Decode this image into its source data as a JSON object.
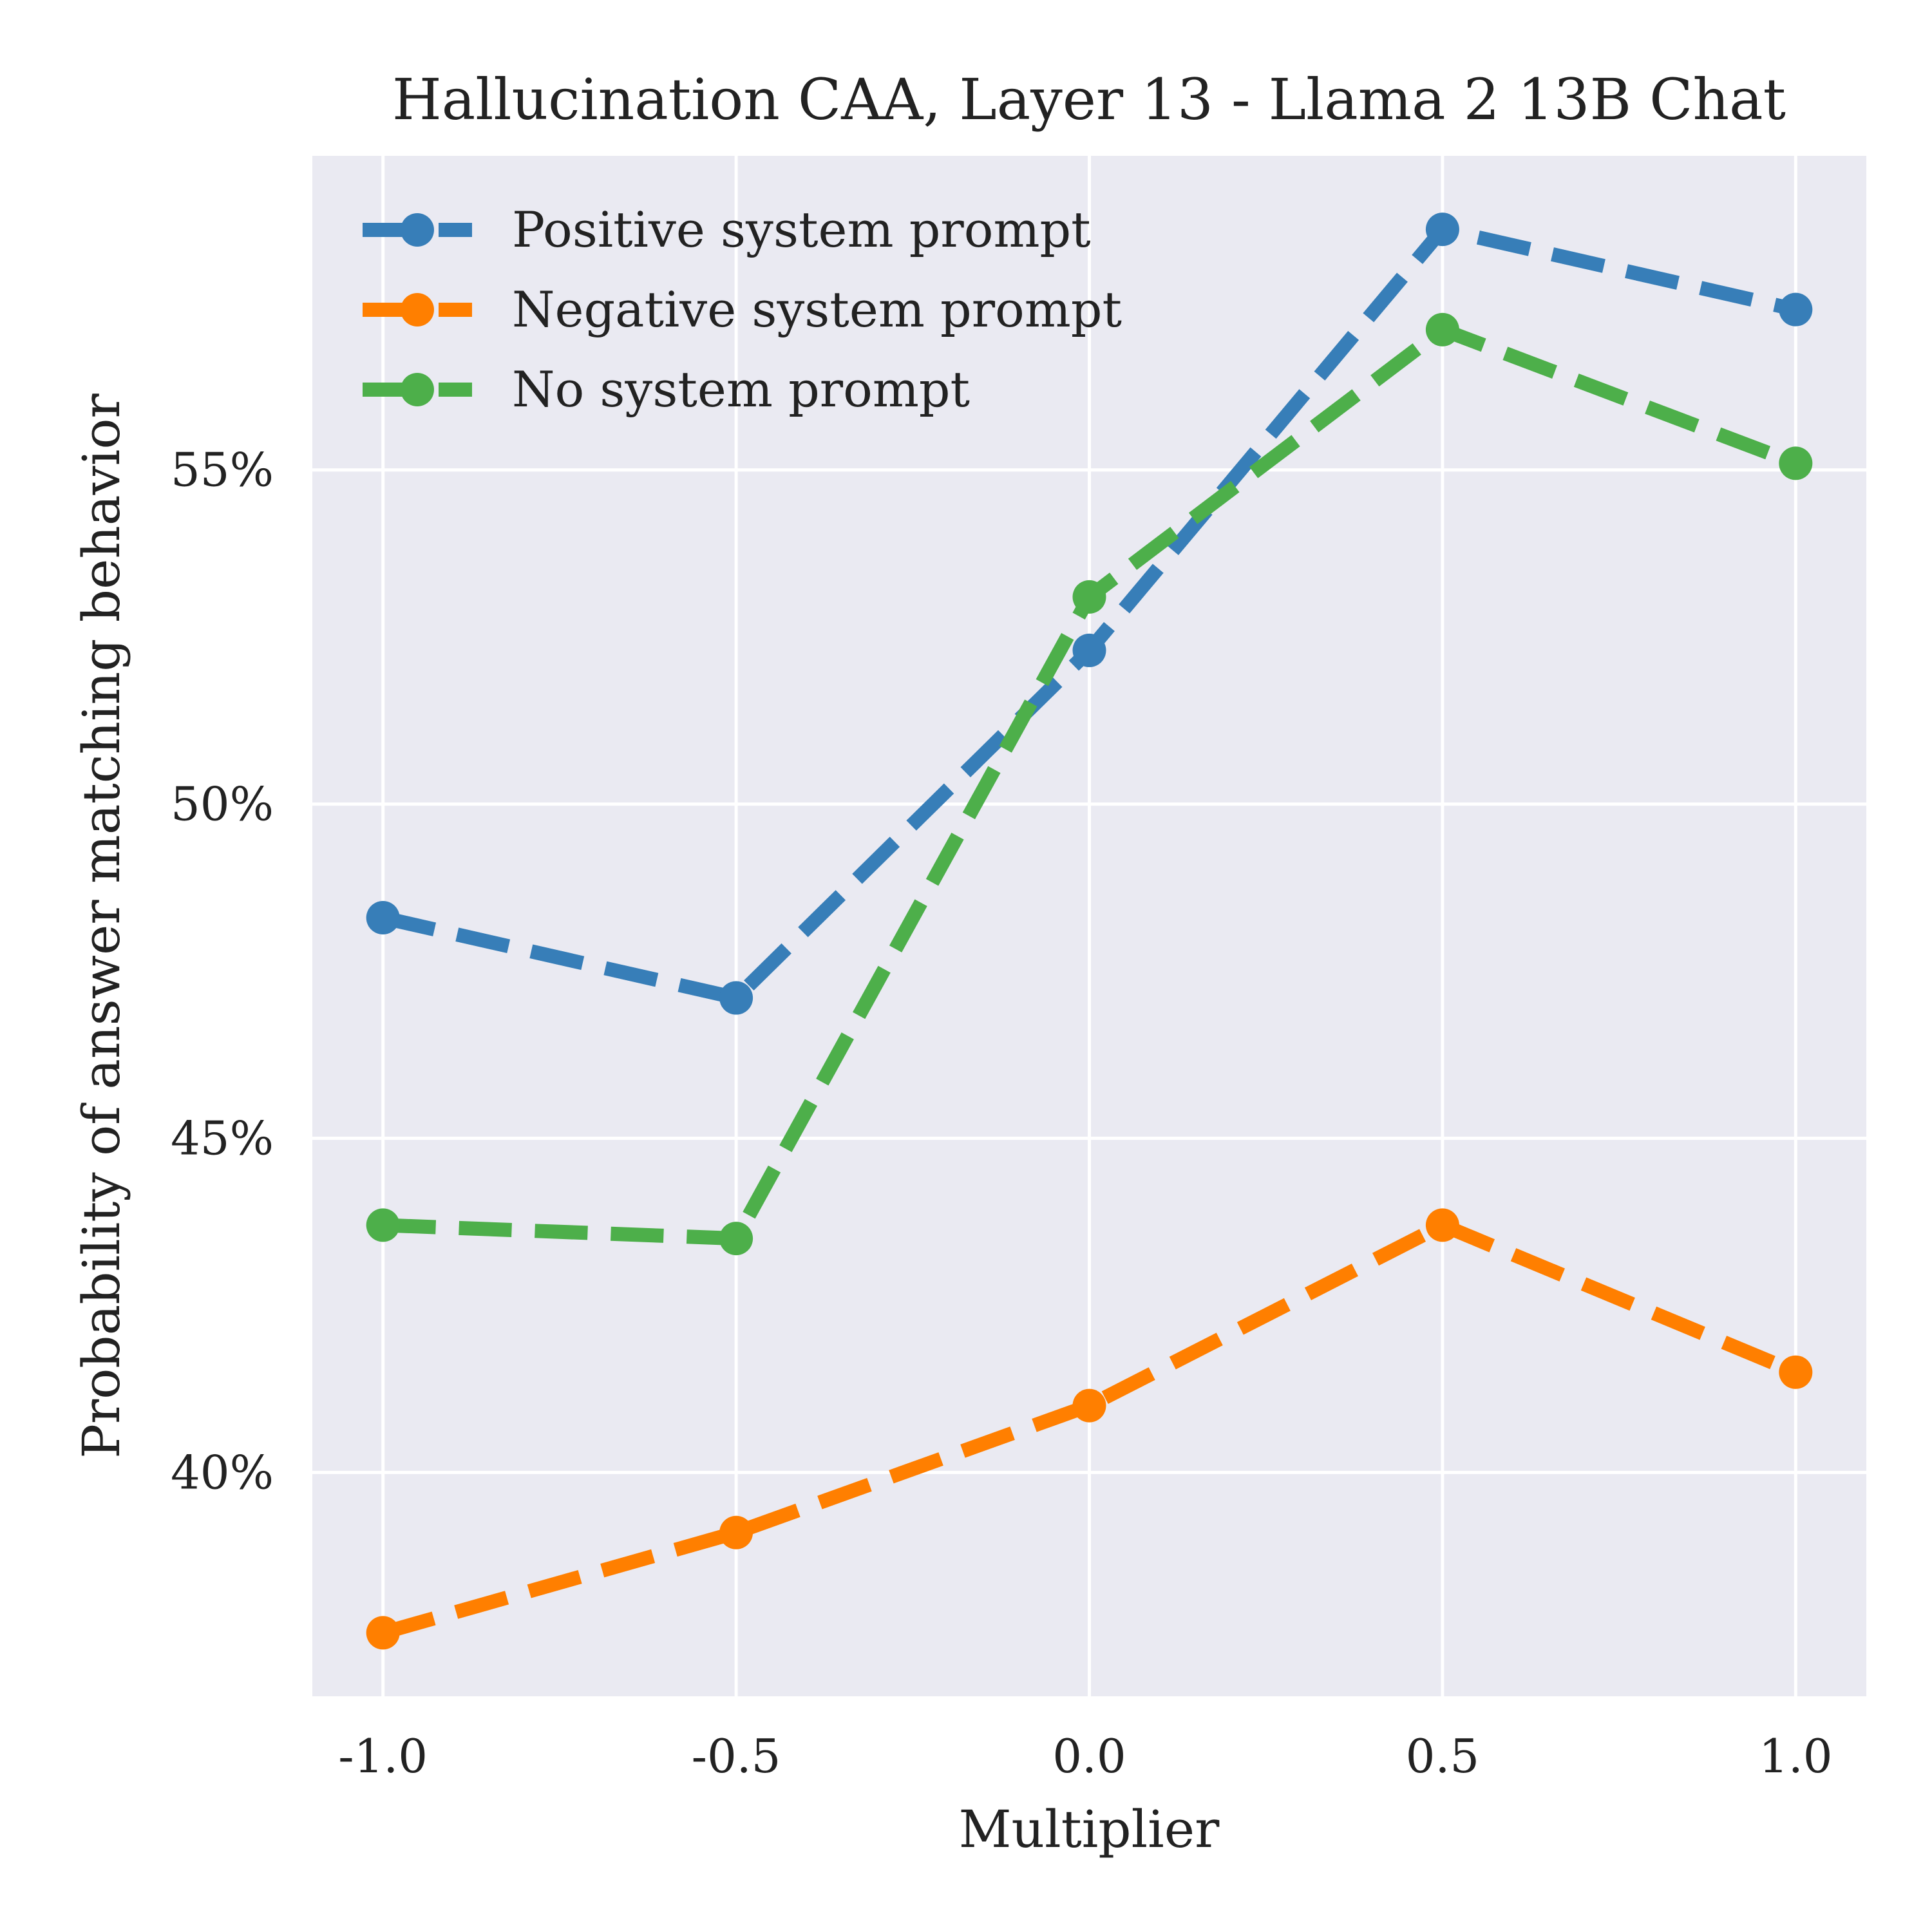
{
  "chart_data": {
    "type": "line",
    "title": "Hallucination CAA, Layer 13 - Llama 2 13B Chat",
    "xlabel": "Multiplier",
    "ylabel": "Probability of answer matching behavior",
    "x": [
      -1.0,
      -0.5,
      0.0,
      0.5,
      1.0
    ],
    "x_tick_labels": [
      "-1.0",
      "-0.5",
      "0.0",
      "0.5",
      "1.0"
    ],
    "xlim": [
      -1.1,
      1.1
    ],
    "y_ticks": [
      0.4,
      0.45,
      0.5,
      0.55
    ],
    "y_tick_labels": [
      "40%",
      "45%",
      "50%",
      "55%"
    ],
    "ylim": [
      0.3665,
      0.597
    ],
    "grid": true,
    "legend_position": "top-left",
    "line_style": "dashed",
    "series": [
      {
        "name": "Positive system prompt",
        "color": "#377eb8",
        "values": [
          0.483,
          0.471,
          0.523,
          0.586,
          0.574
        ]
      },
      {
        "name": "Negative system prompt",
        "color": "#ff7f00",
        "values": [
          0.376,
          0.391,
          0.41,
          0.437,
          0.415
        ]
      },
      {
        "name": "No system prompt",
        "color": "#4daf4a",
        "values": [
          0.437,
          0.435,
          0.531,
          0.571,
          0.551
        ]
      }
    ]
  }
}
